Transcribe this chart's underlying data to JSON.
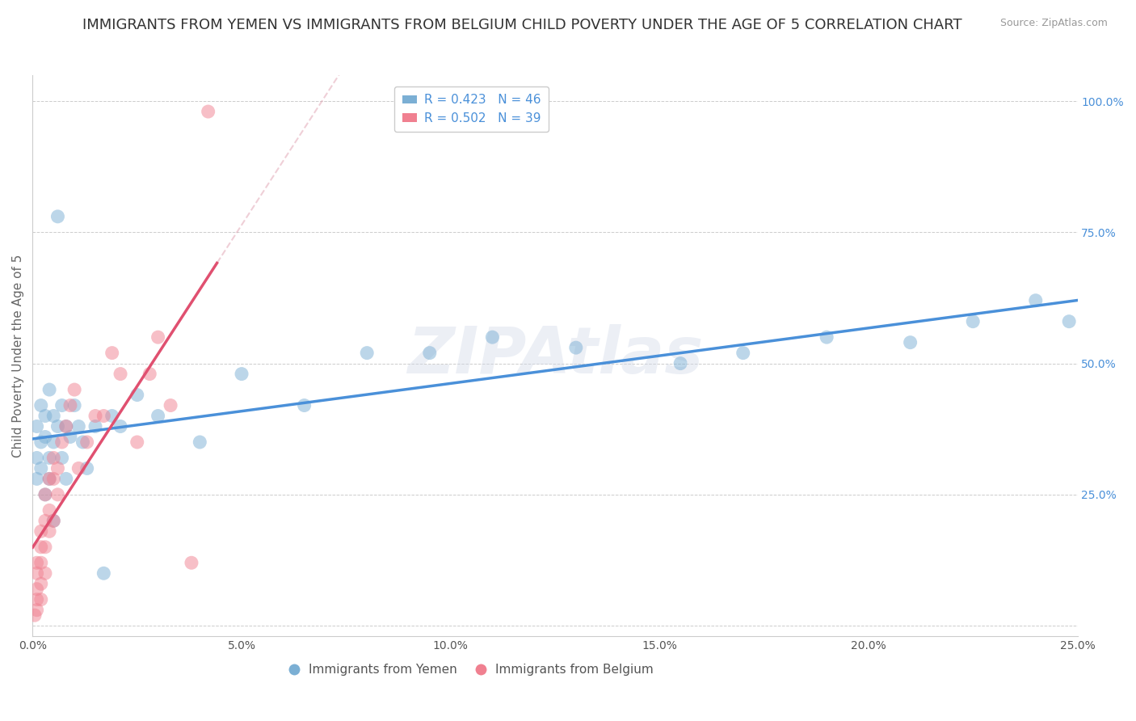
{
  "title": "IMMIGRANTS FROM YEMEN VS IMMIGRANTS FROM BELGIUM CHILD POVERTY UNDER THE AGE OF 5 CORRELATION CHART",
  "source": "Source: ZipAtlas.com",
  "ylabel": "Child Poverty Under the Age of 5",
  "xlim": [
    0,
    0.25
  ],
  "ylim": [
    -0.02,
    1.05
  ],
  "xticks": [
    0.0,
    0.05,
    0.1,
    0.15,
    0.2,
    0.25
  ],
  "yticks": [
    0.0,
    0.25,
    0.5,
    0.75,
    1.0
  ],
  "ytick_labels_right": [
    "",
    "25.0%",
    "50.0%",
    "75.0%",
    "100.0%"
  ],
  "xtick_labels": [
    "0.0%",
    "5.0%",
    "10.0%",
    "15.0%",
    "20.0%",
    "25.0%"
  ],
  "legend_entries": [
    {
      "label": "R = 0.423   N = 46",
      "color": "#a8c4e0"
    },
    {
      "label": "R = 0.502   N = 39",
      "color": "#f4a0b0"
    }
  ],
  "legend_labels_bottom": [
    "Immigrants from Yemen",
    "Immigrants from Belgium"
  ],
  "watermark": "ZIPAtlas",
  "blue_color": "#7bafd4",
  "pink_color": "#f08090",
  "blue_line_color": "#4a90d9",
  "pink_line_color": "#e05070",
  "pink_dash_color": "#e0a0b0",
  "yemen_x": [
    0.001,
    0.001,
    0.001,
    0.002,
    0.002,
    0.002,
    0.003,
    0.003,
    0.003,
    0.004,
    0.004,
    0.004,
    0.005,
    0.005,
    0.005,
    0.006,
    0.006,
    0.007,
    0.007,
    0.008,
    0.008,
    0.009,
    0.01,
    0.011,
    0.012,
    0.013,
    0.015,
    0.017,
    0.019,
    0.021,
    0.025,
    0.03,
    0.04,
    0.05,
    0.065,
    0.08,
    0.095,
    0.11,
    0.13,
    0.155,
    0.17,
    0.19,
    0.21,
    0.225,
    0.24,
    0.248
  ],
  "yemen_y": [
    0.38,
    0.32,
    0.28,
    0.35,
    0.3,
    0.42,
    0.36,
    0.25,
    0.4,
    0.32,
    0.28,
    0.45,
    0.35,
    0.2,
    0.4,
    0.78,
    0.38,
    0.42,
    0.32,
    0.38,
    0.28,
    0.36,
    0.42,
    0.38,
    0.35,
    0.3,
    0.38,
    0.1,
    0.4,
    0.38,
    0.44,
    0.4,
    0.35,
    0.48,
    0.42,
    0.52,
    0.52,
    0.55,
    0.53,
    0.5,
    0.52,
    0.55,
    0.54,
    0.58,
    0.62,
    0.58
  ],
  "belgium_x": [
    0.0005,
    0.001,
    0.001,
    0.001,
    0.001,
    0.001,
    0.002,
    0.002,
    0.002,
    0.002,
    0.002,
    0.003,
    0.003,
    0.003,
    0.003,
    0.004,
    0.004,
    0.004,
    0.005,
    0.005,
    0.005,
    0.006,
    0.006,
    0.007,
    0.008,
    0.009,
    0.01,
    0.011,
    0.013,
    0.015,
    0.017,
    0.019,
    0.021,
    0.025,
    0.028,
    0.03,
    0.033,
    0.038,
    0.042
  ],
  "belgium_y": [
    0.02,
    0.03,
    0.05,
    0.07,
    0.1,
    0.12,
    0.05,
    0.08,
    0.12,
    0.15,
    0.18,
    0.1,
    0.15,
    0.2,
    0.25,
    0.18,
    0.22,
    0.28,
    0.2,
    0.28,
    0.32,
    0.25,
    0.3,
    0.35,
    0.38,
    0.42,
    0.45,
    0.3,
    0.35,
    0.4,
    0.4,
    0.52,
    0.48,
    0.35,
    0.48,
    0.55,
    0.42,
    0.12,
    0.98
  ],
  "background_color": "#ffffff",
  "grid_color": "#cccccc",
  "title_fontsize": 13,
  "axis_label_fontsize": 11,
  "tick_fontsize": 10,
  "legend_fontsize": 11
}
